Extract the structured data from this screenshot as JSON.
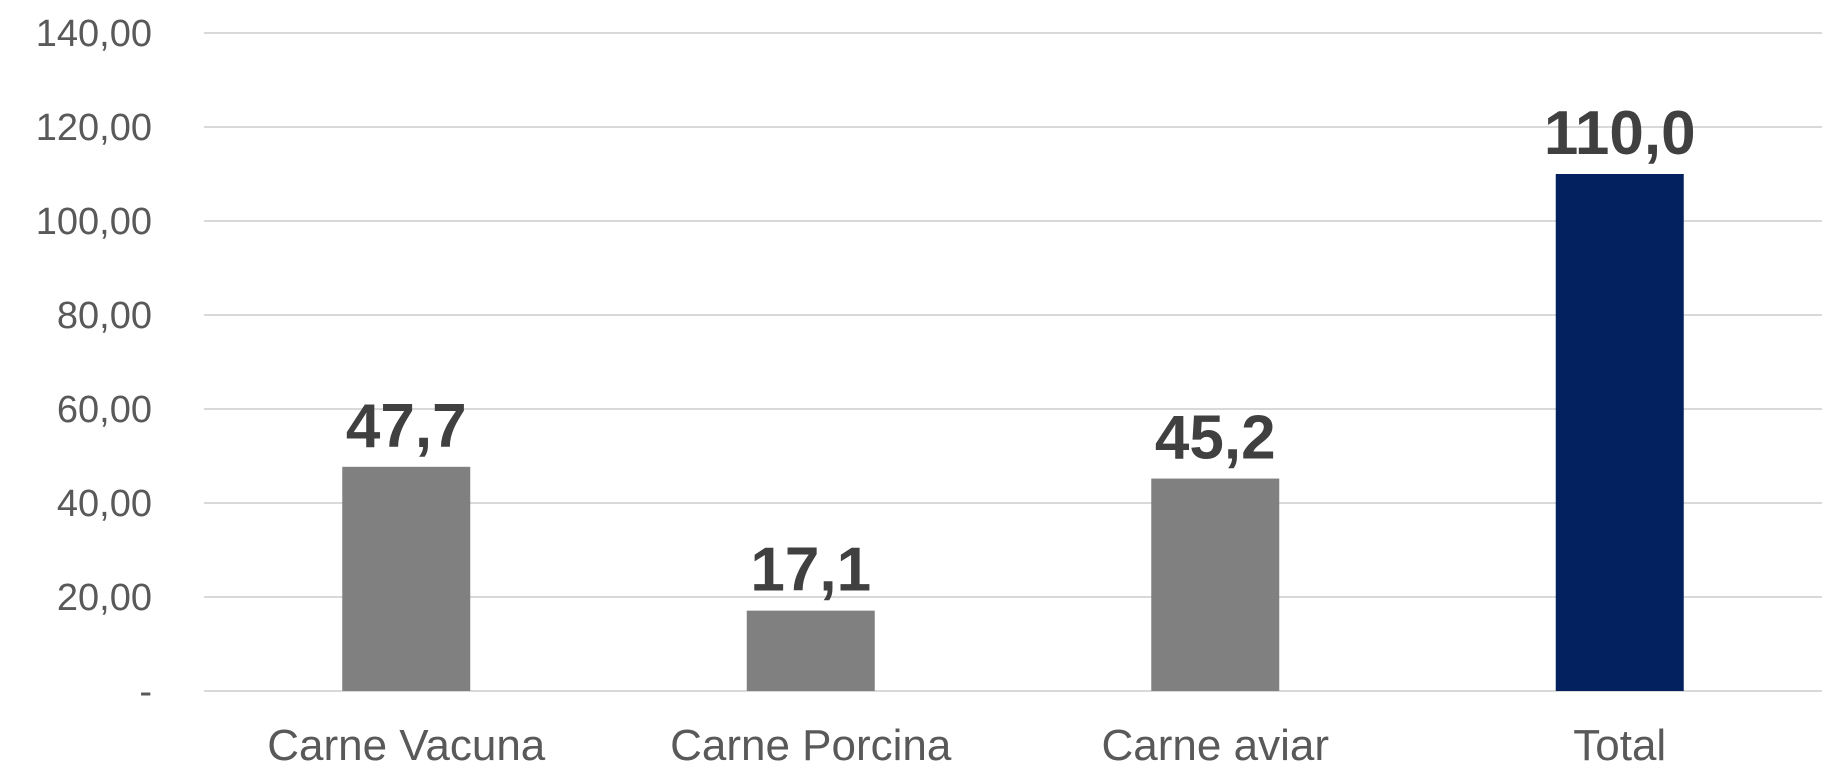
{
  "chart_data": {
    "type": "bar",
    "categories": [
      "Carne Vacuna",
      "Carne Porcina",
      "Carne aviar",
      "Total"
    ],
    "values": [
      47.7,
      17.1,
      45.2,
      110.0
    ],
    "data_labels": [
      "47,7",
      "17,1",
      "45,2",
      "110,0"
    ],
    "bar_colors": [
      "#808080",
      "#808080",
      "#808080",
      "#03215f"
    ],
    "ylim": [
      0,
      140
    ],
    "yticks": [
      0,
      20,
      40,
      60,
      80,
      100,
      120,
      140
    ],
    "ytick_labels": [
      "-",
      "20,00",
      "40,00",
      "60,00",
      "80,00",
      "100,00",
      "120,00",
      "140,00"
    ],
    "grid": true,
    "legend": "none"
  }
}
